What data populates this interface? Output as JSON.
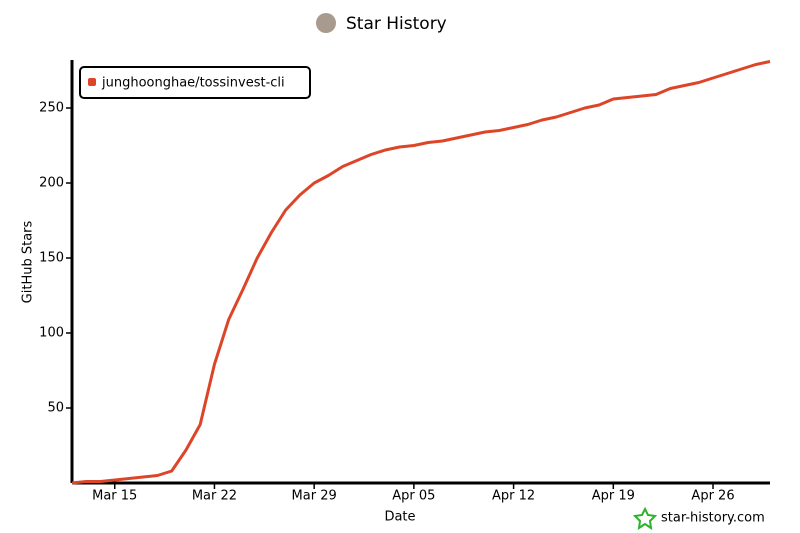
{
  "chart_data": {
    "type": "line",
    "title": "Star History",
    "x_label": "Date",
    "y_label": "GitHub Stars",
    "watermark": "star-history.com",
    "x": [
      "Mar 12",
      "Mar 13",
      "Mar 14",
      "Mar 15",
      "Mar 16",
      "Mar 17",
      "Mar 18",
      "Mar 19",
      "Mar 20",
      "Mar 21",
      "Mar 22",
      "Mar 23",
      "Mar 24",
      "Mar 25",
      "Mar 26",
      "Mar 27",
      "Mar 28",
      "Mar 29",
      "Mar 30",
      "Mar 31",
      "Apr 01",
      "Apr 02",
      "Apr 03",
      "Apr 04",
      "Apr 05",
      "Apr 06",
      "Apr 07",
      "Apr 08",
      "Apr 09",
      "Apr 10",
      "Apr 11",
      "Apr 12",
      "Apr 13",
      "Apr 14",
      "Apr 15",
      "Apr 16",
      "Apr 17",
      "Apr 18",
      "Apr 19",
      "Apr 20",
      "Apr 21",
      "Apr 22",
      "Apr 23",
      "Apr 24",
      "Apr 25",
      "Apr 26",
      "Apr 27",
      "Apr 28",
      "Apr 29",
      "Apr 30"
    ],
    "series": [
      {
        "name": "junghoonghae/tossinvest-cli",
        "color": "#dd4528",
        "values": [
          0,
          1,
          1,
          2,
          3,
          4,
          5,
          8,
          22,
          39,
          79,
          109,
          129,
          150,
          167,
          182,
          192,
          200,
          205,
          211,
          215,
          219,
          222,
          224,
          225,
          227,
          228,
          230,
          232,
          234,
          235,
          237,
          239,
          242,
          244,
          247,
          250,
          252,
          256,
          257,
          258,
          259,
          263,
          265,
          267,
          270,
          273,
          276,
          279,
          281
        ]
      }
    ],
    "xlim": [
      "Mar 12",
      "Apr 30"
    ],
    "xticks": [
      "Mar 15",
      "Mar 22",
      "Mar 29",
      "Apr 05",
      "Apr 12",
      "Apr 19",
      "Apr 26"
    ],
    "ylim": [
      0,
      282
    ],
    "yticks": [
      50,
      100,
      150,
      200,
      250
    ],
    "legend": "top-left"
  }
}
